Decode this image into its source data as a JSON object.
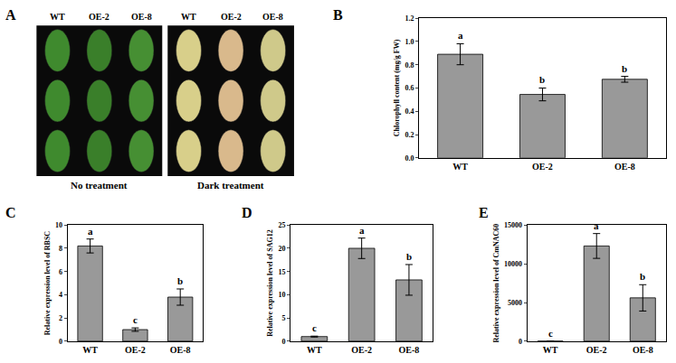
{
  "chart_data": [
    {
      "panel": "A",
      "type": "image",
      "columns": [
        "WT",
        "OE-2",
        "OE-8"
      ],
      "labels": [
        "No treatment",
        "Dark treatment"
      ]
    },
    {
      "panel": "B",
      "type": "bar",
      "y_label": "Chlorophyll content (mg/g FW)",
      "categories": [
        "WT",
        "OE-2",
        "OE-8"
      ],
      "values": [
        0.89,
        0.545,
        0.675
      ],
      "errors": [
        0.09,
        0.055,
        0.025
      ],
      "letters": [
        "a",
        "b",
        "b"
      ],
      "color": "#999999",
      "ylim": [
        0,
        1.2
      ],
      "yticks": [
        {
          "value": 0,
          "label": "0.0"
        },
        {
          "value": 0.2,
          "label": "0.2"
        },
        {
          "value": 0.4,
          "label": "0.4"
        },
        {
          "value": 0.6,
          "label": "0.6"
        },
        {
          "value": 0.8,
          "label": "0.8"
        },
        {
          "value": 1.0,
          "label": "1.0"
        },
        {
          "value": 1.2,
          "label": "1.2"
        }
      ]
    },
    {
      "panel": "C",
      "type": "bar",
      "y_label": "Relative expression level of RBSC",
      "categories": [
        "WT",
        "OE-2",
        "OE-8"
      ],
      "values": [
        8.2,
        1.0,
        3.8
      ],
      "errors": [
        0.6,
        0.15,
        0.7
      ],
      "letters": [
        "a",
        "c",
        "b"
      ],
      "color": "#999999",
      "ylim": [
        0,
        10
      ],
      "yticks": [
        0,
        2,
        4,
        6,
        8,
        10
      ]
    },
    {
      "panel": "D",
      "type": "bar",
      "y_label": "Relative expression level of SAG12",
      "categories": [
        "WT",
        "OE-2",
        "OE-8"
      ],
      "values": [
        1.0,
        20.0,
        13.2
      ],
      "errors": [
        0.1,
        2.2,
        3.3
      ],
      "letters": [
        "c",
        "a",
        "b"
      ],
      "color": "#999999",
      "ylim": [
        0,
        25
      ],
      "yticks": [
        0,
        5,
        10,
        15,
        20,
        25
      ]
    },
    {
      "panel": "E",
      "type": "bar",
      "y_label": "Relative expression level of CmNAC60",
      "categories": [
        "WT",
        "OE-2",
        "OE-8"
      ],
      "values": [
        1,
        12300,
        5600
      ],
      "errors": [
        0.1,
        1600,
        1700
      ],
      "letters": [
        "c",
        "a",
        "b"
      ],
      "color": "#999999",
      "ylim": [
        0,
        15000
      ],
      "yticks": [
        0,
        5000,
        10000,
        15000
      ]
    }
  ]
}
